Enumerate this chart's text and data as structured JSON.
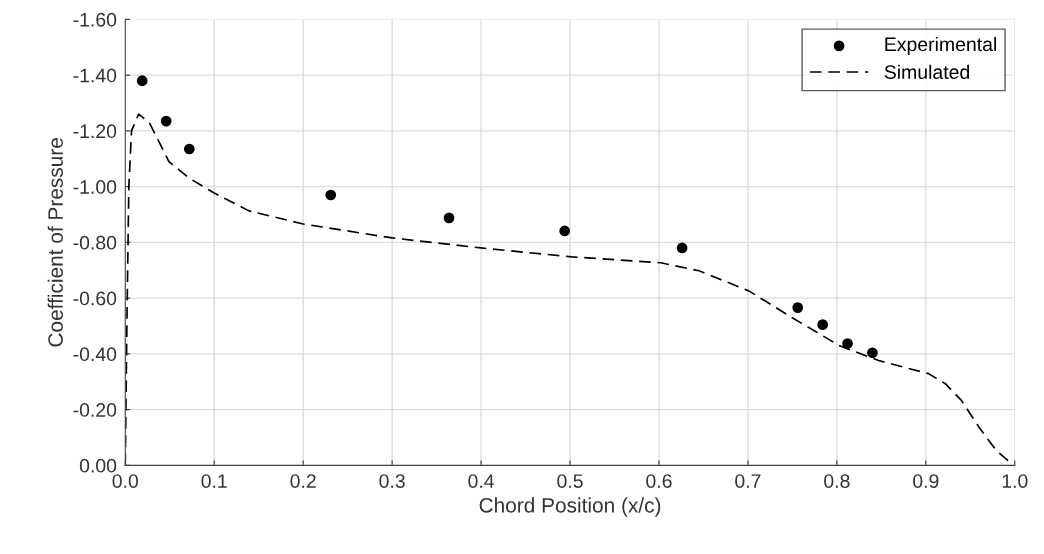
{
  "chart_data": {
    "type": "line",
    "xlabel": "Chord Position (x/c)",
    "ylabel": "Coefficient of Pressure",
    "xlim": [
      0,
      1
    ],
    "ylim": [
      0,
      -1.6
    ],
    "xticks": [
      {
        "value": 0,
        "label": "0.0"
      },
      {
        "value": 0.1,
        "label": "0.1"
      },
      {
        "value": 0.2,
        "label": "0.2"
      },
      {
        "value": 0.3,
        "label": "0.3"
      },
      {
        "value": 0.4,
        "label": "0.4"
      },
      {
        "value": 0.5,
        "label": "0.5"
      },
      {
        "value": 0.6,
        "label": "0.6"
      },
      {
        "value": 0.7,
        "label": "0.7"
      },
      {
        "value": 0.8,
        "label": "0.8"
      },
      {
        "value": 0.9,
        "label": "0.9"
      },
      {
        "value": 1,
        "label": "1.0"
      }
    ],
    "yticks": [
      {
        "value": 0,
        "label": "0.00"
      },
      {
        "value": -0.2,
        "label": "-0.20"
      },
      {
        "value": -0.4,
        "label": "-0.40"
      },
      {
        "value": -0.6,
        "label": "-0.60"
      },
      {
        "value": -0.8,
        "label": "-0.80"
      },
      {
        "value": -1.0,
        "label": "-1.00"
      },
      {
        "value": -1.2,
        "label": "-1.20"
      },
      {
        "value": -1.4,
        "label": "-1.40"
      },
      {
        "value": -1.6,
        "label": "-1.60"
      }
    ],
    "grid": true,
    "legend": "top right",
    "series": [
      {
        "name": "Experimental",
        "type": "scatter",
        "color": "#000000",
        "marker": "circle",
        "x": [
          0.019,
          0.046,
          0.072,
          0.231,
          0.364,
          0.494,
          0.626,
          0.756,
          0.784,
          0.812,
          0.84
        ],
        "values": [
          -1.38,
          -1.235,
          -1.135,
          -0.97,
          -0.888,
          -0.841,
          -0.78,
          -0.566,
          -0.505,
          -0.437,
          -0.404
        ]
      },
      {
        "name": "Simulated",
        "color": "#000000",
        "line_style": "dashed",
        "x": [
          0,
          0.002,
          0.004,
          0.007,
          0.015,
          0.027,
          0.049,
          0.072,
          0.1,
          0.139,
          0.2,
          0.3,
          0.4,
          0.502,
          0.602,
          0.645,
          0.701,
          0.746,
          0.803,
          0.847,
          0.903,
          0.922,
          0.94,
          0.96,
          0.979,
          0.996
        ],
        "values": [
          0,
          -0.55,
          -1.0,
          -1.2,
          -1.26,
          -1.23,
          -1.09,
          -1.03,
          -0.977,
          -0.913,
          -0.866,
          -0.816,
          -0.78,
          -0.748,
          -0.727,
          -0.698,
          -0.626,
          -0.537,
          -0.429,
          -0.376,
          -0.329,
          -0.293,
          -0.233,
          -0.136,
          -0.054,
          -0.007
        ]
      }
    ]
  }
}
